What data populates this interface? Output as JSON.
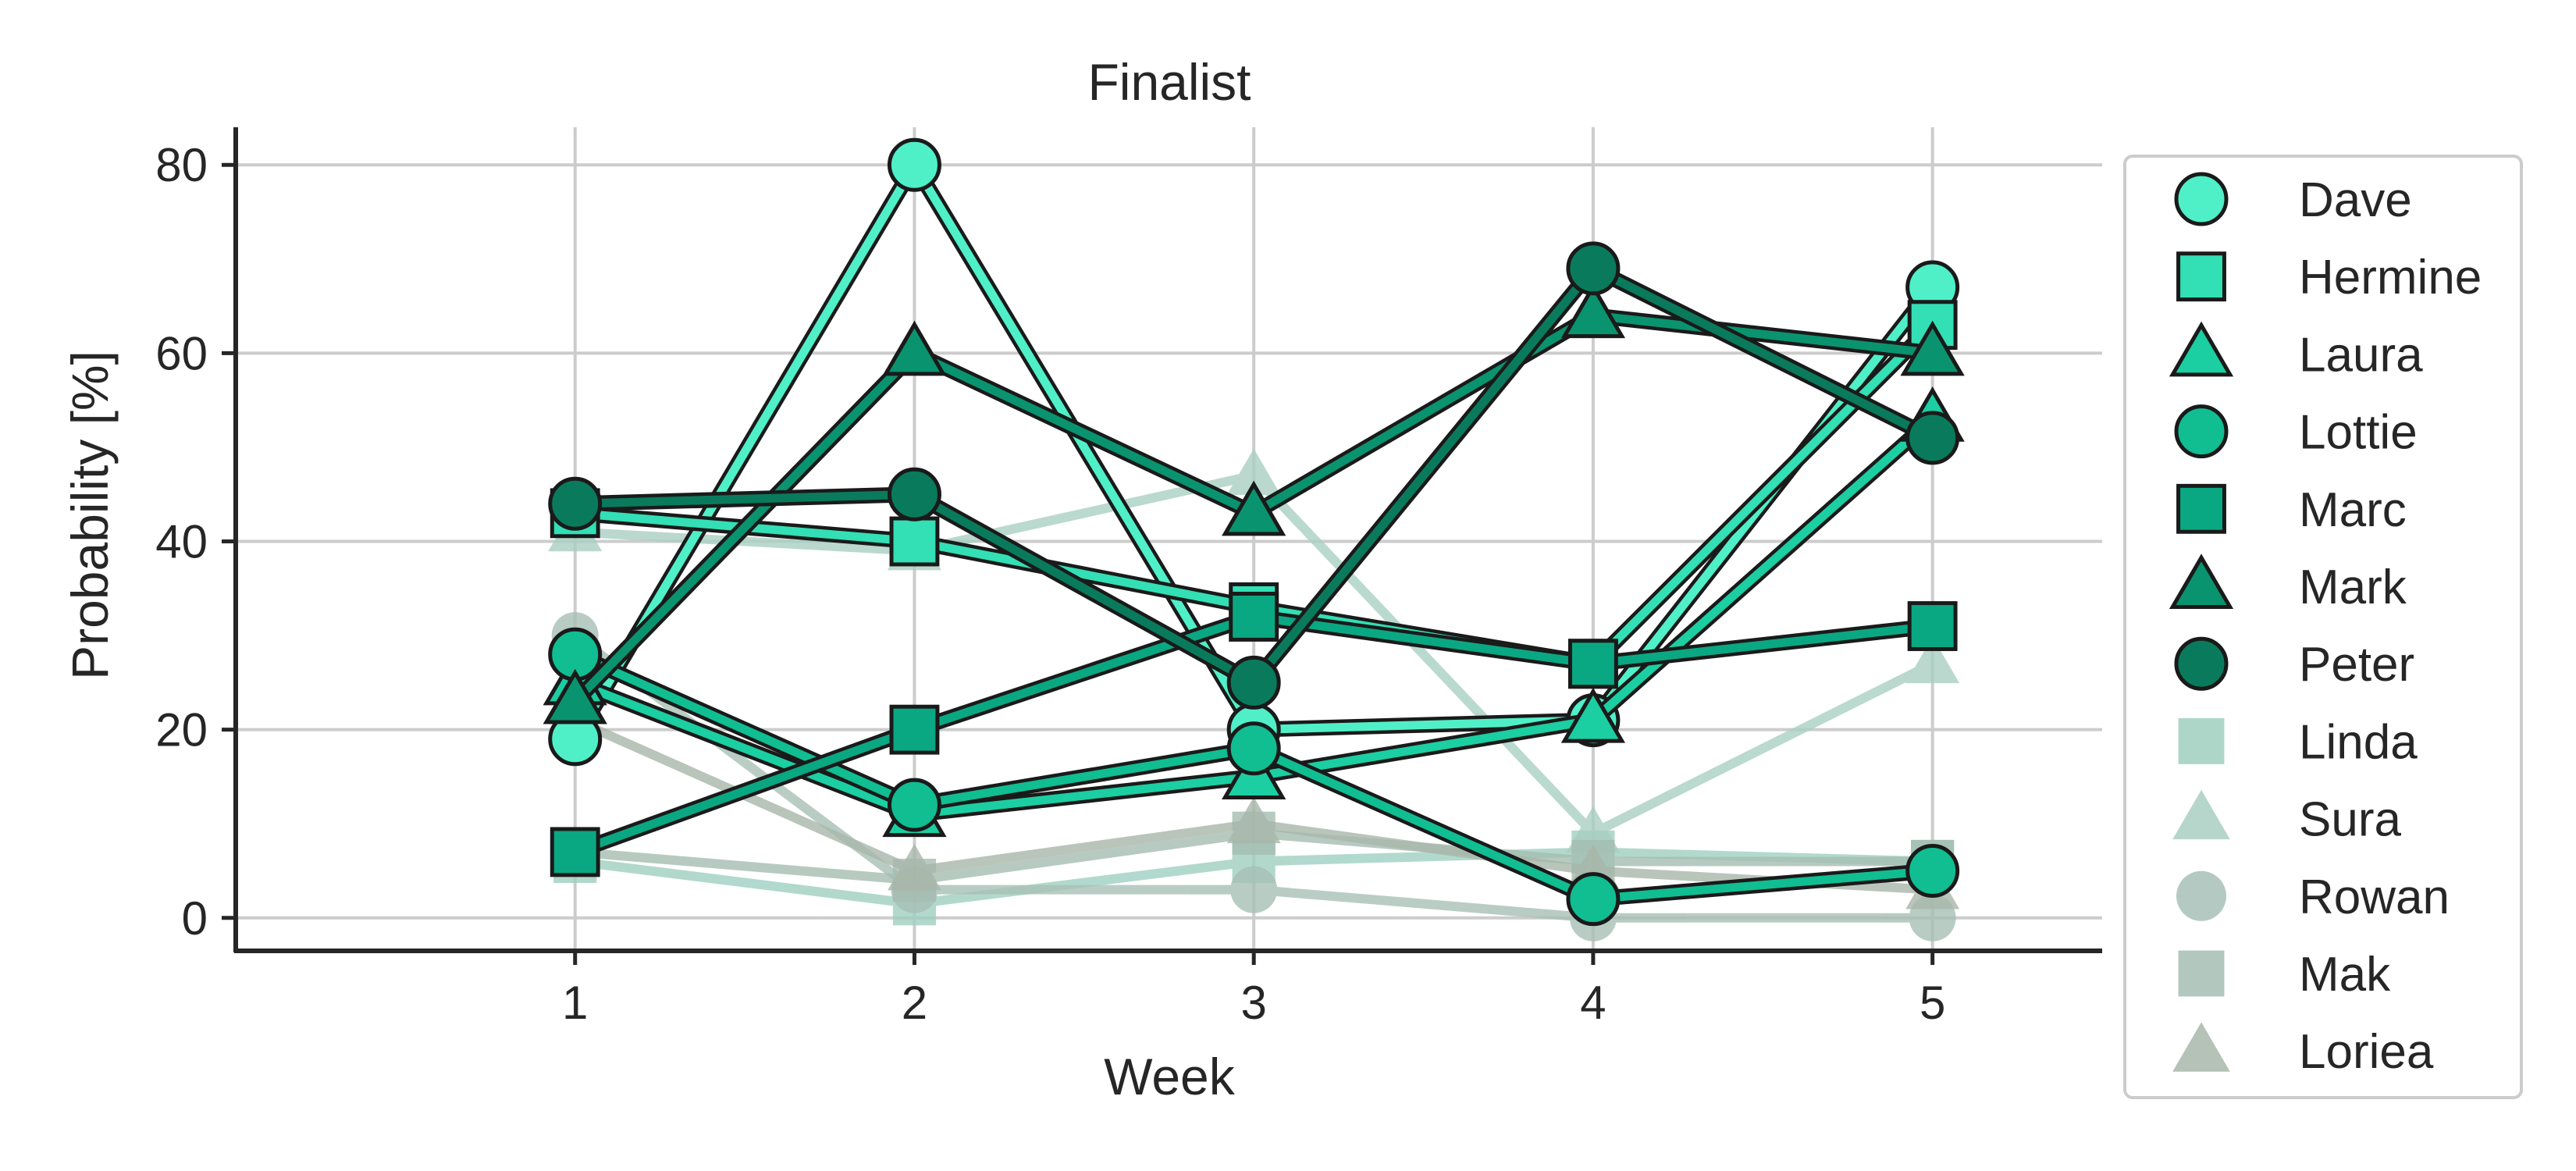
{
  "chart_data": {
    "type": "line",
    "title": "Finalist",
    "xlabel": "Week",
    "ylabel": "Probability [%]",
    "x": [
      1,
      2,
      3,
      4,
      5
    ],
    "xticks": [
      "1",
      "2",
      "3",
      "4",
      "5"
    ],
    "yticks": [
      0,
      20,
      40,
      60,
      80
    ],
    "xlim": [
      0,
      5.5
    ],
    "ylim": [
      -3.5,
      84
    ],
    "grid": true,
    "legend_position": "right-outside",
    "series": [
      {
        "name": "Dave",
        "marker": "circle",
        "color": "#4ff0c8",
        "values": [
          19,
          80,
          20,
          21,
          67
        ],
        "faded": false
      },
      {
        "name": "Hermine",
        "marker": "square",
        "color": "#33dfb4",
        "values": [
          43,
          40,
          33,
          27,
          63
        ],
        "faded": false
      },
      {
        "name": "Laura",
        "marker": "triangle",
        "color": "#1bcfa2",
        "values": [
          25,
          11,
          15,
          21,
          53
        ],
        "faded": false
      },
      {
        "name": "Lottie",
        "marker": "circle",
        "color": "#10be92",
        "values": [
          28,
          12,
          18,
          2,
          5
        ],
        "faded": false
      },
      {
        "name": "Marc",
        "marker": "square",
        "color": "#0aa882",
        "values": [
          7,
          20,
          32,
          27,
          31
        ],
        "faded": false
      },
      {
        "name": "Mark",
        "marker": "triangle",
        "color": "#0a936f",
        "values": [
          23,
          60,
          43,
          64,
          60
        ],
        "faded": false
      },
      {
        "name": "Peter",
        "marker": "circle",
        "color": "#097b5c",
        "values": [
          44,
          45,
          25,
          69,
          51
        ],
        "faded": false
      },
      {
        "name": "Linda",
        "marker": "square",
        "color": "#9fcfc0",
        "values": [
          6,
          1.5,
          6,
          7,
          6
        ],
        "faded": true
      },
      {
        "name": "Sura",
        "marker": "triangle",
        "color": "#a9cfc3",
        "values": [
          41,
          39,
          47,
          9,
          27
        ],
        "faded": true
      },
      {
        "name": "Rowan",
        "marker": "circle",
        "color": "#a7c0b6",
        "values": [
          30,
          3,
          3,
          0,
          0
        ],
        "faded": true
      },
      {
        "name": "Mak",
        "marker": "square",
        "color": "#a5bdb1",
        "values": [
          7,
          4,
          9,
          6,
          6
        ],
        "faded": true
      },
      {
        "name": "Loriea",
        "marker": "triangle",
        "color": "#a8b7aa",
        "values": [
          21,
          5,
          10,
          5,
          3
        ],
        "faded": true
      }
    ]
  }
}
